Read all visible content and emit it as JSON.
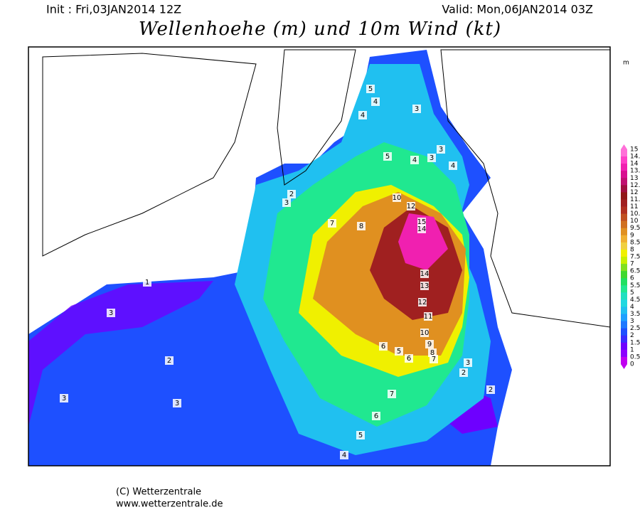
{
  "header": {
    "init": "Init : Fri,03JAN2014 12Z",
    "valid": "Valid: Mon,06JAN2014 03Z",
    "title": "Wellenhoehe (m) und 10m Wind (kt)"
  },
  "legend": {
    "unit": "m",
    "labels": [
      "15",
      "14.",
      "14",
      "13.",
      "13",
      "12.",
      "12",
      "11.",
      "11",
      "10.",
      "10",
      "9.5",
      "9",
      "8.5",
      "8",
      "7.5",
      "7",
      "6.5",
      "6",
      "5.5",
      "5",
      "4.5",
      "4",
      "3.5",
      "3",
      "2.5",
      "2",
      "1.5",
      "1",
      "0.5",
      "0"
    ],
    "colors": [
      "#ff70d8",
      "#ff40c8",
      "#f020b0",
      "#d81090",
      "#c01070",
      "#a01040",
      "#901818",
      "#a02020",
      "#b03020",
      "#c05020",
      "#d07020",
      "#e09020",
      "#f0b030",
      "#f0d040",
      "#f0f000",
      "#c8f000",
      "#80e020",
      "#40d830",
      "#20e060",
      "#20e890",
      "#20e0c0",
      "#20d8e0",
      "#20c0f0",
      "#1ea0ff",
      "#1e78ff",
      "#1e50ff",
      "#3a2cff",
      "#6e00ff",
      "#8c00ff",
      "#c000f0"
    ]
  },
  "map_labels": [
    5,
    4,
    4,
    5,
    4,
    3,
    3,
    4,
    3,
    7,
    8,
    10,
    12,
    15,
    14,
    14,
    13,
    12,
    11,
    10,
    9,
    8,
    7,
    6,
    5,
    6,
    7,
    6,
    5,
    4,
    3,
    1,
    2,
    3,
    3,
    3,
    2,
    2,
    2,
    3
  ],
  "footer": {
    "copyright": "(C) Wetterzentrale",
    "url": "www.wetterzentrale.de"
  }
}
